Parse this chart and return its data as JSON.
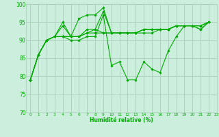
{
  "xlabel": "Humidité relative (%)",
  "background_color": "#cceedd",
  "grid_color": "#aaccbb",
  "line_color": "#00aa00",
  "xlim": [
    -0.5,
    23
  ],
  "ylim": [
    70,
    100
  ],
  "xticks": [
    0,
    1,
    2,
    3,
    4,
    5,
    6,
    7,
    8,
    9,
    10,
    11,
    12,
    13,
    14,
    15,
    16,
    17,
    18,
    19,
    20,
    21,
    22,
    23
  ],
  "yticks": [
    70,
    75,
    80,
    85,
    90,
    95,
    100
  ],
  "series": [
    [
      79,
      86,
      90,
      91,
      91,
      90,
      90,
      91,
      91,
      97,
      83,
      84,
      79,
      79,
      84,
      82,
      81,
      87,
      91,
      94,
      94,
      93,
      95
    ],
    [
      79,
      86,
      90,
      91,
      91,
      91,
      91,
      92,
      93,
      98,
      92,
      92,
      92,
      92,
      92,
      92,
      93,
      93,
      94,
      94,
      94,
      93,
      95
    ],
    [
      79,
      86,
      90,
      91,
      95,
      91,
      96,
      97,
      97,
      99,
      92,
      92,
      92,
      92,
      93,
      93,
      93,
      93,
      94,
      94,
      94,
      94,
      95
    ],
    [
      79,
      86,
      90,
      91,
      94,
      91,
      91,
      93,
      93,
      92,
      92,
      92,
      92,
      92,
      93,
      93,
      93,
      93,
      94,
      94,
      94,
      94,
      95
    ],
    [
      79,
      86,
      90,
      91,
      91,
      91,
      91,
      92,
      92,
      92,
      92,
      92,
      92,
      92,
      93,
      93,
      93,
      93,
      94,
      94,
      94,
      94,
      95
    ]
  ]
}
